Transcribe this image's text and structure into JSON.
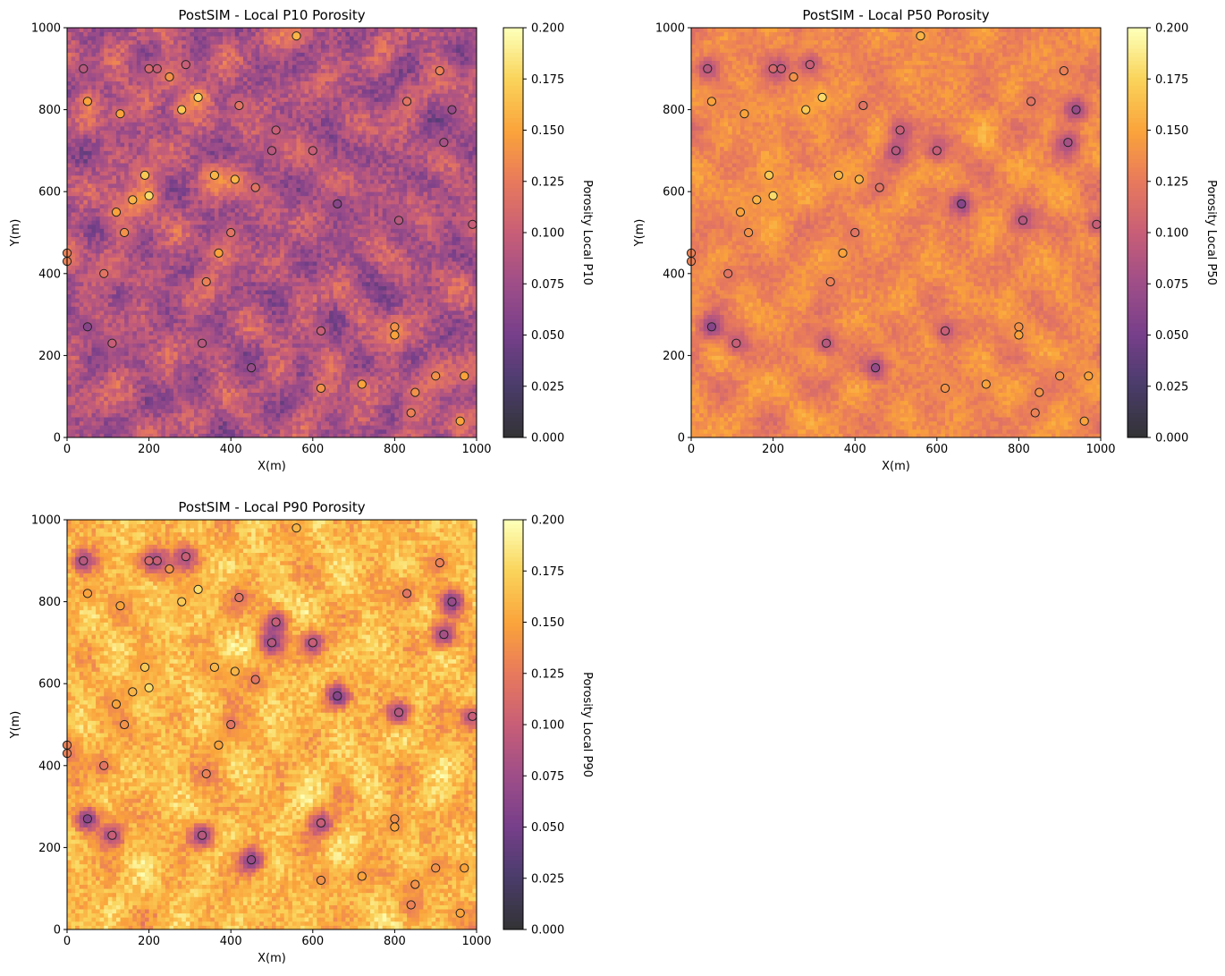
{
  "colorbar_ticks": [
    "0.000",
    "0.025",
    "0.050",
    "0.075",
    "0.100",
    "0.125",
    "0.150",
    "0.175",
    "0.200"
  ],
  "x_ticks": [
    "0",
    "200",
    "400",
    "600",
    "800",
    "1000"
  ],
  "y_ticks": [
    "0",
    "200",
    "400",
    "600",
    "800",
    "1000"
  ],
  "colormap": "inferno",
  "chart_data": [
    {
      "type": "heatmap",
      "title": "PostSIM - Local P10 Porosity",
      "xlabel": "X(m)",
      "ylabel": "Y(m)",
      "colorbar_label": "Porosity Local P10",
      "xlim": [
        0,
        1000
      ],
      "ylim": [
        0,
        1000
      ],
      "clim": [
        0.0,
        0.2
      ],
      "grid": false,
      "grid_cells": [
        100,
        100
      ],
      "field": {
        "base": 0.085,
        "amplitude": 0.03,
        "noise": 0.02,
        "well_effect": 0.035,
        "seed": 11
      }
    },
    {
      "type": "heatmap",
      "title": "PostSIM - Local P50 Porosity",
      "xlabel": "X(m)",
      "ylabel": "Y(m)",
      "colorbar_label": "Porosity Local P50",
      "xlim": [
        0,
        1000
      ],
      "ylim": [
        0,
        1000
      ],
      "clim": [
        0.0,
        0.2
      ],
      "grid": false,
      "grid_cells": [
        100,
        100
      ],
      "field": {
        "base": 0.135,
        "amplitude": 0.016,
        "noise": 0.01,
        "well_effect": -0.025,
        "seed": 23
      }
    },
    {
      "type": "heatmap",
      "title": "PostSIM - Local P90 Porosity",
      "xlabel": "X(m)",
      "ylabel": "Y(m)",
      "colorbar_label": "Porosity Local P90",
      "xlim": [
        0,
        1000
      ],
      "ylim": [
        0,
        1000
      ],
      "clim": [
        0.0,
        0.2
      ],
      "grid": false,
      "grid_cells": [
        100,
        100
      ],
      "field": {
        "base": 0.162,
        "amplitude": 0.018,
        "noise": 0.018,
        "well_effect": -0.055,
        "seed": 37
      }
    }
  ],
  "wells": [
    {
      "x": 40,
      "y": 900,
      "por": 0.09
    },
    {
      "x": 50,
      "y": 820,
      "por": 0.15
    },
    {
      "x": 200,
      "y": 900,
      "por": 0.11
    },
    {
      "x": 220,
      "y": 900,
      "por": 0.1
    },
    {
      "x": 250,
      "y": 880,
      "por": 0.14
    },
    {
      "x": 290,
      "y": 910,
      "por": 0.1
    },
    {
      "x": 560,
      "y": 980,
      "por": 0.16
    },
    {
      "x": 910,
      "y": 895,
      "por": 0.13
    },
    {
      "x": 130,
      "y": 790,
      "por": 0.15
    },
    {
      "x": 280,
      "y": 800,
      "por": 0.17
    },
    {
      "x": 320,
      "y": 830,
      "por": 0.18
    },
    {
      "x": 420,
      "y": 810,
      "por": 0.12
    },
    {
      "x": 830,
      "y": 820,
      "por": 0.12
    },
    {
      "x": 940,
      "y": 800,
      "por": 0.07
    },
    {
      "x": 510,
      "y": 750,
      "por": 0.1
    },
    {
      "x": 500,
      "y": 700,
      "por": 0.09
    },
    {
      "x": 600,
      "y": 700,
      "por": 0.1
    },
    {
      "x": 920,
      "y": 720,
      "por": 0.08
    },
    {
      "x": 190,
      "y": 640,
      "por": 0.17
    },
    {
      "x": 360,
      "y": 640,
      "por": 0.16
    },
    {
      "x": 410,
      "y": 630,
      "por": 0.16
    },
    {
      "x": 160,
      "y": 580,
      "por": 0.16
    },
    {
      "x": 200,
      "y": 590,
      "por": 0.18
    },
    {
      "x": 460,
      "y": 610,
      "por": 0.12
    },
    {
      "x": 660,
      "y": 570,
      "por": 0.06
    },
    {
      "x": 120,
      "y": 550,
      "por": 0.15
    },
    {
      "x": 810,
      "y": 530,
      "por": 0.09
    },
    {
      "x": 140,
      "y": 500,
      "por": 0.14
    },
    {
      "x": 400,
      "y": 500,
      "por": 0.12
    },
    {
      "x": 990,
      "y": 520,
      "por": 0.1
    },
    {
      "x": 0,
      "y": 450,
      "por": 0.13
    },
    {
      "x": 0,
      "y": 430,
      "por": 0.13
    },
    {
      "x": 370,
      "y": 450,
      "por": 0.15
    },
    {
      "x": 90,
      "y": 400,
      "por": 0.12
    },
    {
      "x": 340,
      "y": 380,
      "por": 0.13
    },
    {
      "x": 50,
      "y": 270,
      "por": 0.06
    },
    {
      "x": 110,
      "y": 230,
      "por": 0.1
    },
    {
      "x": 330,
      "y": 230,
      "por": 0.09
    },
    {
      "x": 620,
      "y": 260,
      "por": 0.1
    },
    {
      "x": 800,
      "y": 270,
      "por": 0.14
    },
    {
      "x": 800,
      "y": 250,
      "por": 0.15
    },
    {
      "x": 450,
      "y": 170,
      "por": 0.07
    },
    {
      "x": 900,
      "y": 150,
      "por": 0.14
    },
    {
      "x": 970,
      "y": 150,
      "por": 0.15
    },
    {
      "x": 620,
      "y": 120,
      "por": 0.14
    },
    {
      "x": 720,
      "y": 130,
      "por": 0.15
    },
    {
      "x": 850,
      "y": 110,
      "por": 0.14
    },
    {
      "x": 840,
      "y": 60,
      "por": 0.13
    },
    {
      "x": 960,
      "y": 40,
      "por": 0.15
    }
  ]
}
